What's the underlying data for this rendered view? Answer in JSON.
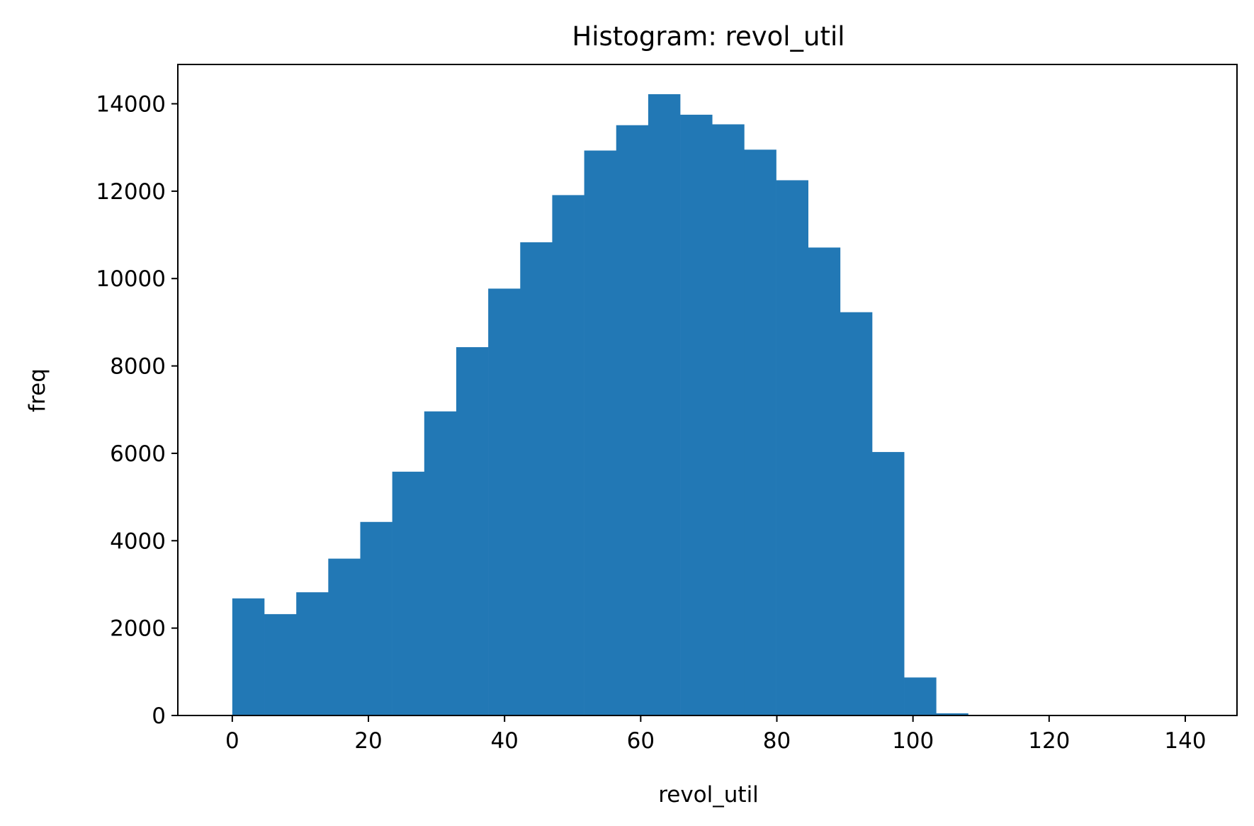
{
  "chart_data": {
    "type": "bar",
    "title": "Histogram: revol_util",
    "xlabel": "revol_util",
    "ylabel": "freq",
    "xlim": [
      -8,
      147.6
    ],
    "ylim": [
      0,
      14900
    ],
    "xticks": [
      0,
      20,
      40,
      60,
      80,
      100,
      120,
      140
    ],
    "yticks": [
      0,
      2000,
      4000,
      6000,
      8000,
      10000,
      12000,
      14000
    ],
    "xtick_labels": [
      "0",
      "20",
      "40",
      "60",
      "80",
      "100",
      "120",
      "140"
    ],
    "ytick_labels": [
      "0",
      "2000",
      "4000",
      "6000",
      "8000",
      "10000",
      "12000",
      "14000"
    ],
    "bin_start": 0,
    "bin_width": 4.7,
    "values": [
      2680,
      2320,
      2820,
      3590,
      4430,
      5580,
      6960,
      8430,
      9770,
      10830,
      11910,
      12930,
      13510,
      14220,
      13750,
      13530,
      12950,
      12250,
      10710,
      9230,
      6030,
      870,
      50,
      0,
      0,
      0,
      0,
      0,
      0,
      0
    ],
    "bar_color": "#2278b5",
    "grid": false
  }
}
